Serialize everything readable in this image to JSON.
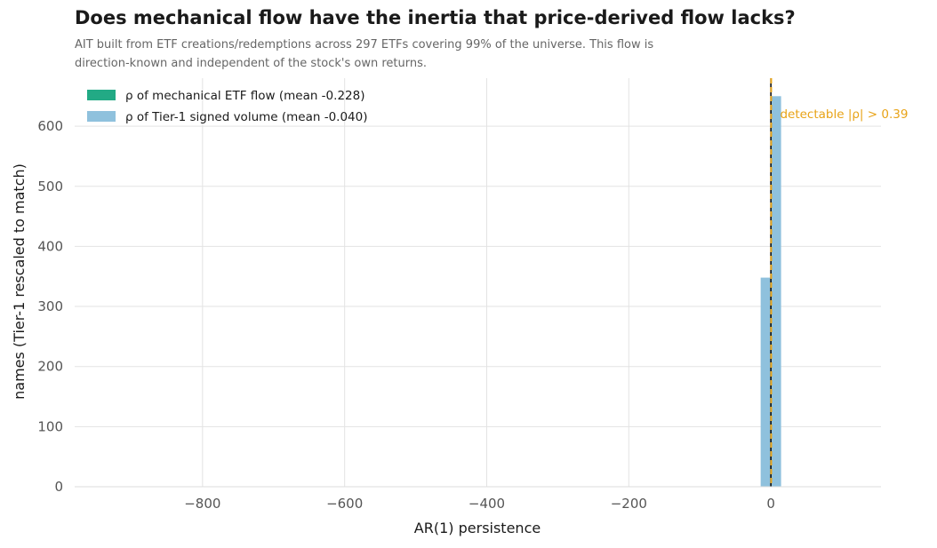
{
  "chart_data": {
    "type": "bar",
    "title": "Does mechanical flow have the inertia that price-derived flow lacks?",
    "subtitle_lines": [
      "AIT built from ETF creations/redemptions across 297 ETFs covering 99% of the universe. This flow is",
      "direction-known and independent of the stock's own returns."
    ],
    "xlabel": "AR(1) persistence",
    "ylabel": "names (Tier-1 rescaled to match)",
    "xlim": [
      -980,
      155
    ],
    "ylim": [
      0,
      680
    ],
    "x_ticks": [
      -800,
      -600,
      -400,
      -200,
      0
    ],
    "x_tick_labels": [
      "−800",
      "−600",
      "−400",
      "−200",
      "0"
    ],
    "y_ticks": [
      0,
      100,
      200,
      300,
      400,
      500,
      600
    ],
    "y_tick_labels": [
      "0",
      "100",
      "200",
      "300",
      "400",
      "500",
      "600"
    ],
    "grid": true,
    "legend_position": "top-left",
    "series": [
      {
        "name": "ρ of mechanical ETF flow (mean -0.228)",
        "color": "#22aa85",
        "bins": [
          [
            -15,
            0,
            0
          ],
          [
            0,
            15,
            0
          ]
        ]
      },
      {
        "name": "ρ of Tier-1 signed volume (mean -0.040)",
        "color": "#8fc1dd",
        "bins": [
          [
            -15,
            0,
            348
          ],
          [
            0,
            15,
            650
          ]
        ]
      }
    ],
    "reference_lines": [
      {
        "x": 0,
        "color": "#000000",
        "style": "solid"
      },
      {
        "x": 0.39,
        "color": "#e8a317",
        "style": "dashed",
        "label": "detectable |ρ| > 0.39"
      }
    ]
  }
}
